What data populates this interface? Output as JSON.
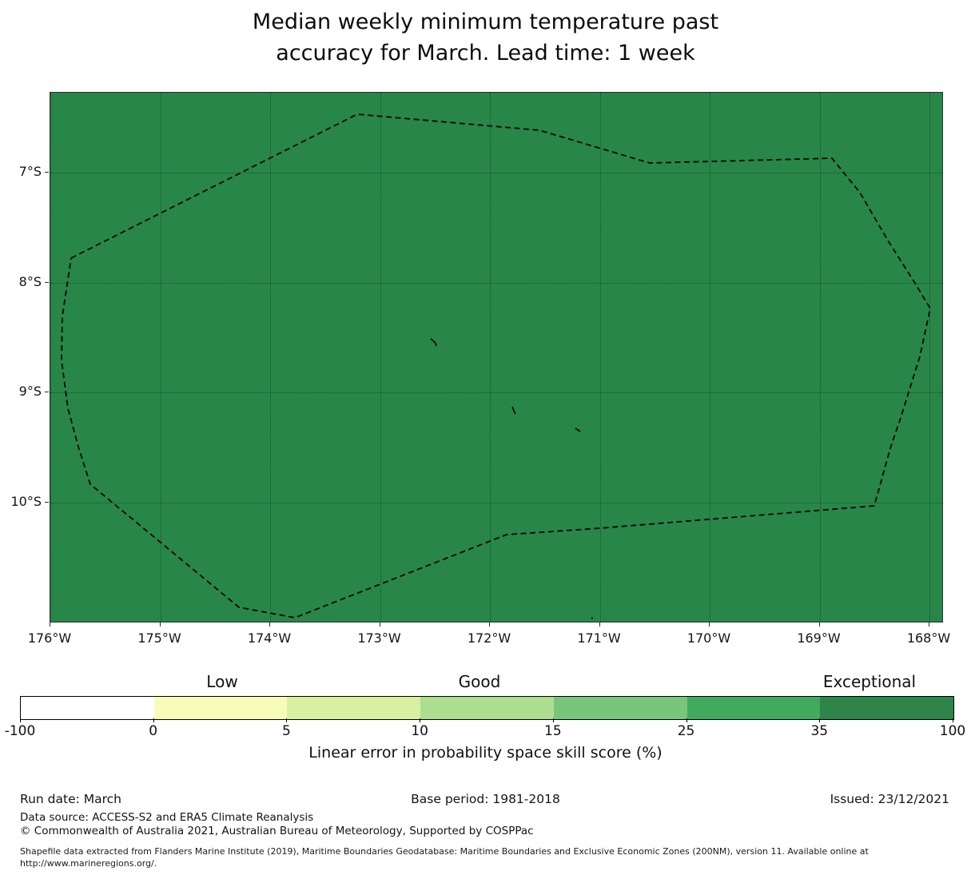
{
  "title": {
    "line1": "Median weekly minimum temperature past",
    "line2": "accuracy for March. Lead time: 1 week"
  },
  "map": {
    "region_fill_color": "#288648",
    "boundary_line_style": "dashed-black",
    "x_tick_labels": [
      "176°W",
      "175°W",
      "174°W",
      "173°W",
      "172°W",
      "171°W",
      "170°W",
      "169°W",
      "168°W"
    ],
    "y_tick_labels": [
      "7°S",
      "8°S",
      "9°S",
      "10°S"
    ]
  },
  "colorbar": {
    "zone_labels": [
      "Low",
      "Good",
      "Exceptional"
    ],
    "tick_labels": [
      "-100",
      "0",
      "5",
      "10",
      "15",
      "25",
      "35",
      "100"
    ],
    "segment_colors": [
      "#ffffff",
      "#f7fcb9",
      "#d9f0a3",
      "#addd8e",
      "#78c679",
      "#41ab5d",
      "#2e8449"
    ],
    "caption": "Linear error in probability space skill score (%)"
  },
  "footer": {
    "run_date": "Run date: March",
    "base_period": "Base period: 1981-2018",
    "issued": "Issued: 23/12/2021",
    "data_source": "Data source: ACCESS-S2 and ERA5 Climate Reanalysis",
    "copyright": "© Commonwealth of Australia 2021, Australian Bureau of Meteorology, Supported by COSPPac",
    "shapefile_line1": "Shapefile data extracted from Flanders Marine Institute (2019), Maritime Boundaries Geodatabase: Maritime Boundaries and Exclusive Economic Zones (200NM), version 11. Available online at",
    "shapefile_line2": "http://www.marineregions.org/."
  },
  "chart_data": {
    "type": "heatmap",
    "title": "Median weekly minimum temperature past accuracy for March. Lead time: 1 week",
    "x_axis_ticks": [
      "176°W",
      "175°W",
      "174°W",
      "173°W",
      "172°W",
      "171°W",
      "170°W",
      "169°W",
      "168°W"
    ],
    "y_axis_ticks": [
      "7°S",
      "8°S",
      "9°S",
      "10°S"
    ],
    "colorbar_boundaries": [
      -100,
      0,
      5,
      10,
      15,
      25,
      35,
      100
    ],
    "colorbar_spacing": "uniform",
    "colorbar_zone_labels": [
      "Low",
      "Good",
      "Exceptional"
    ],
    "colorbar_caption": "Linear error in probability space skill score (%)",
    "observed_region_bin": "35 to 100 (Exceptional)",
    "grid": "on",
    "boundary_overlay": "EEZ dashed polygon with 4 small island marks"
  }
}
